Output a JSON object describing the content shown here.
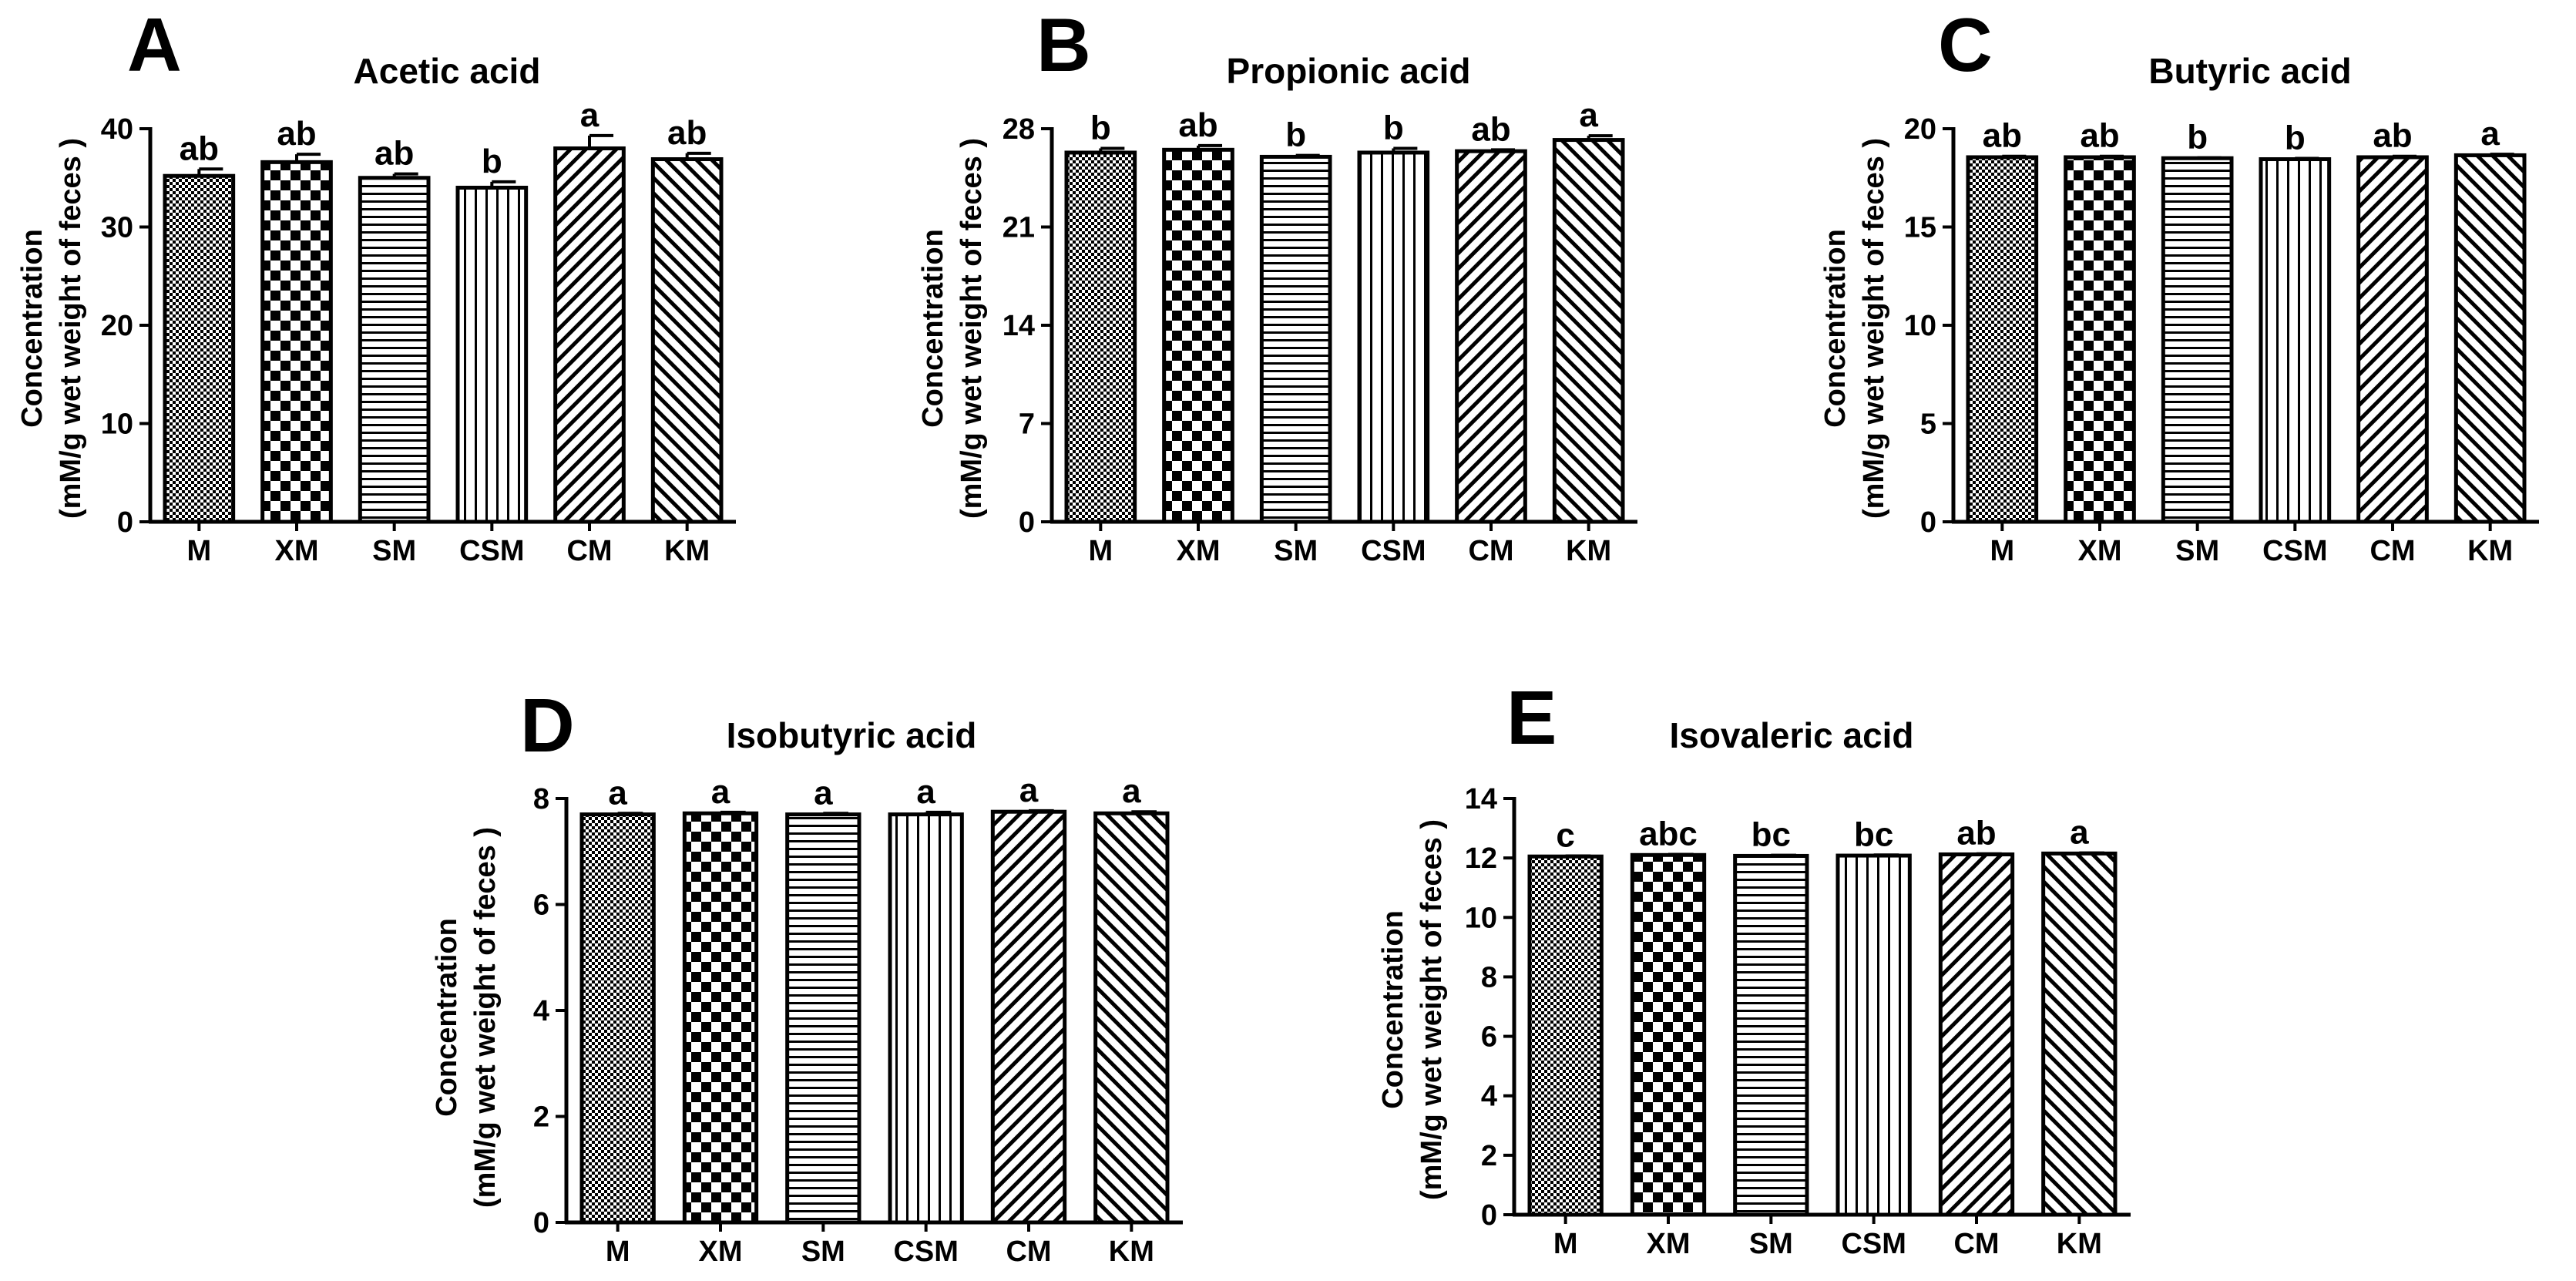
{
  "colors": {
    "ink": "#000000",
    "background": "#ffffff"
  },
  "chart_data": [
    {
      "panel": "A",
      "type": "bar",
      "title": "Acetic acid",
      "ylabel_line1": "Concentration",
      "ylabel_line2": "(mM/g wet weight  of feces )",
      "xlabel": "",
      "categories": [
        "M",
        "XM",
        "SM",
        "CSM",
        "CM",
        "KM"
      ],
      "values": [
        35.2,
        36.6,
        35.0,
        34.0,
        38.0,
        36.9
      ],
      "errors": [
        0.7,
        0.8,
        0.4,
        0.6,
        1.3,
        0.6
      ],
      "significance": [
        "ab",
        "ab",
        "ab",
        "b",
        "a",
        "ab"
      ],
      "patterns": [
        "dots",
        "checker",
        "hlines",
        "vlines",
        "diagR",
        "diagL"
      ],
      "ylim": [
        0,
        40
      ],
      "yticks": [
        0,
        10,
        20,
        30,
        40
      ]
    },
    {
      "panel": "B",
      "type": "bar",
      "title": "Propionic acid",
      "ylabel_line1": "Concentration",
      "ylabel_line2": "(mM/g wet weight  of feces )",
      "xlabel": "",
      "categories": [
        "M",
        "XM",
        "SM",
        "CSM",
        "CM",
        "KM"
      ],
      "values": [
        26.3,
        26.5,
        26.0,
        26.3,
        26.4,
        27.2
      ],
      "errors": [
        0.3,
        0.3,
        0.1,
        0.3,
        0.1,
        0.3
      ],
      "significance": [
        "b",
        "ab",
        "b",
        "b",
        "ab",
        "a"
      ],
      "patterns": [
        "dots",
        "checker",
        "hlines",
        "vlines",
        "diagR",
        "diagL"
      ],
      "ylim": [
        0,
        28
      ],
      "yticks": [
        0,
        7,
        14,
        21,
        28
      ]
    },
    {
      "panel": "C",
      "type": "bar",
      "title": "Butyric acid",
      "ylabel_line1": "Concentration",
      "ylabel_line2": "(mM/g wet weight  of feces )",
      "xlabel": "",
      "categories": [
        "M",
        "XM",
        "SM",
        "CSM",
        "CM",
        "KM"
      ],
      "values": [
        18.55,
        18.55,
        18.5,
        18.45,
        18.55,
        18.65
      ],
      "errors": [
        0.05,
        0.05,
        0.02,
        0.04,
        0.05,
        0.05
      ],
      "significance": [
        "ab",
        "ab",
        "b",
        "b",
        "ab",
        "a"
      ],
      "patterns": [
        "dots",
        "checker",
        "hlines",
        "vlines",
        "diagR",
        "diagL"
      ],
      "ylim": [
        0,
        20
      ],
      "yticks": [
        0,
        5,
        10,
        15,
        20
      ]
    },
    {
      "panel": "D",
      "type": "bar",
      "title": "Isobutyric acid",
      "ylabel_line1": "Concentration",
      "ylabel_line2": "(mM/g wet weight  of feces )",
      "xlabel": "",
      "categories": [
        "M",
        "XM",
        "SM",
        "CSM",
        "CM",
        "KM"
      ],
      "values": [
        7.7,
        7.72,
        7.7,
        7.7,
        7.75,
        7.72
      ],
      "errors": [
        0.02,
        0.02,
        0.02,
        0.04,
        0.02,
        0.03
      ],
      "significance": [
        "a",
        "a",
        "a",
        "a",
        "a",
        "a"
      ],
      "patterns": [
        "dots",
        "checker",
        "hlines",
        "vlines",
        "diagR",
        "diagL"
      ],
      "ylim": [
        0,
        8
      ],
      "yticks": [
        0,
        2,
        4,
        6,
        8
      ]
    },
    {
      "panel": "E",
      "type": "bar",
      "title": "Isovaleric acid",
      "ylabel_line1": "Concentration",
      "ylabel_line2": "(mM/g wet weight  of feces )",
      "xlabel": "",
      "categories": [
        "M",
        "XM",
        "SM",
        "CSM",
        "CM",
        "KM"
      ],
      "values": [
        12.05,
        12.1,
        12.07,
        12.08,
        12.12,
        12.15
      ],
      "errors": [
        0.02,
        0.02,
        0.02,
        0.02,
        0.02,
        0.02
      ],
      "significance": [
        "c",
        "abc",
        "bc",
        "bc",
        "ab",
        "a"
      ],
      "patterns": [
        "dots",
        "checker",
        "hlines",
        "vlines",
        "diagR",
        "diagL"
      ],
      "ylim": [
        0,
        14
      ],
      "yticks": [
        0,
        2,
        4,
        6,
        8,
        10,
        12,
        14
      ]
    }
  ]
}
